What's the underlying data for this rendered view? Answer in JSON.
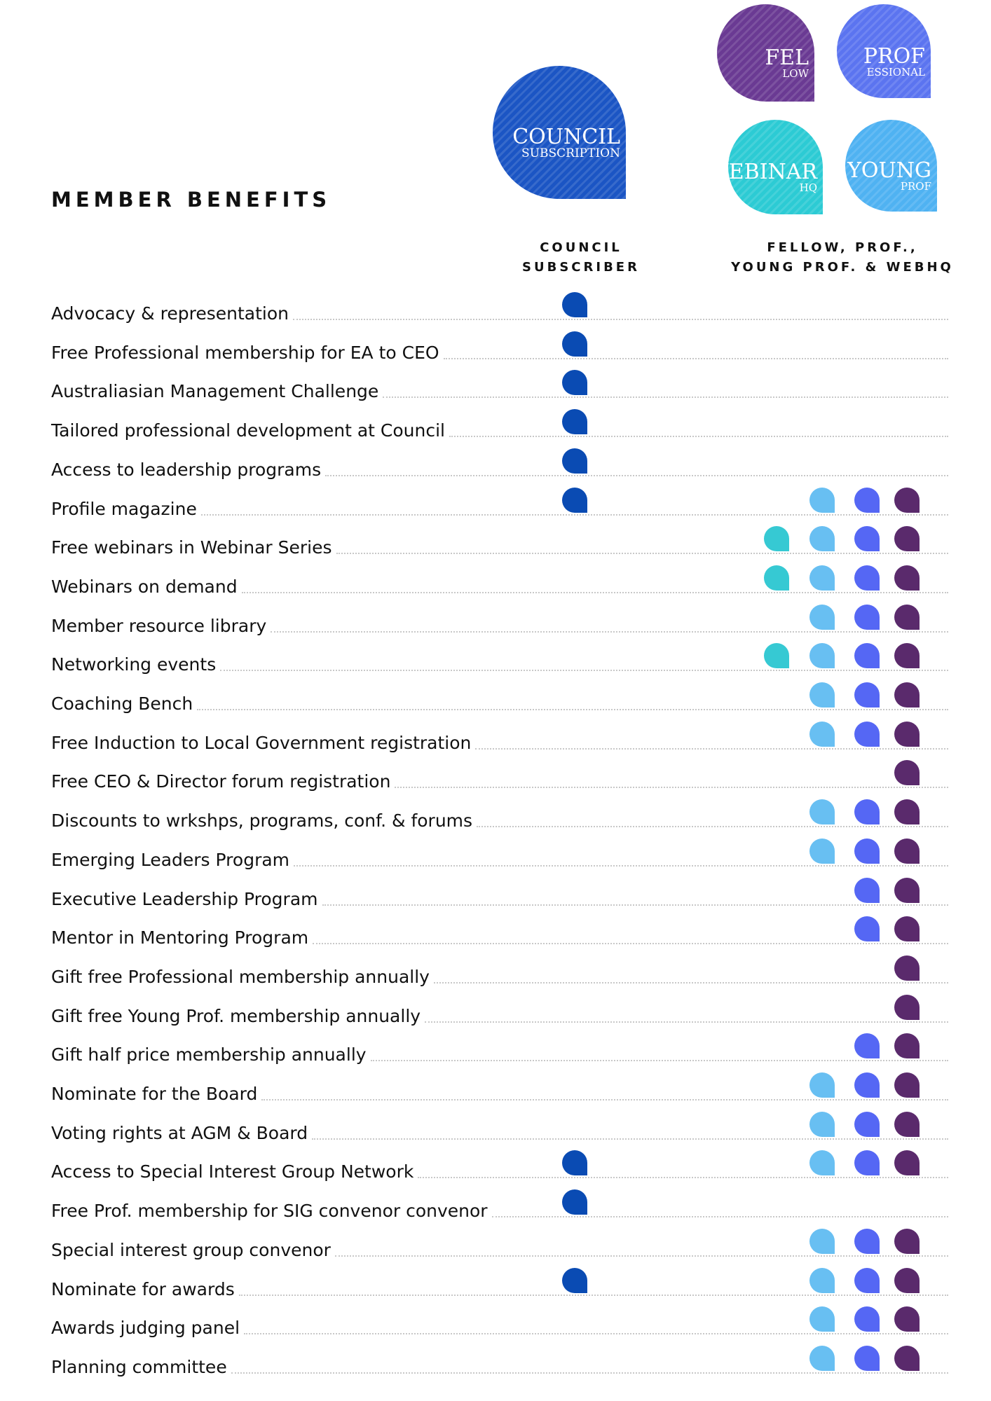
{
  "header": {
    "title": "MEMBER BENEFITS"
  },
  "badges": [
    {
      "lines": [
        "COUNCIL",
        "SUBSCRIPTION"
      ],
      "color": "#1b55c4"
    },
    {
      "lines": [
        "FEL",
        "LOW"
      ],
      "color": "#6a3a93"
    },
    {
      "lines": [
        "PROF",
        "ESSIONAL"
      ],
      "color": "#5b74f0"
    },
    {
      "lines": [
        "WEBINAR",
        "HQ"
      ],
      "color": "#2ccbd4"
    },
    {
      "lines": [
        "YOUNG",
        "PROF"
      ],
      "color": "#4fb2f2"
    }
  ],
  "column_headers": [
    {
      "lines": [
        "COUNCIL",
        "SUBSCRIBER"
      ]
    },
    {
      "lines": [
        "FELLOW, PROF.,",
        "YOUNG PROF. & WEBHQ"
      ]
    }
  ],
  "mark_colors": [
    "#0a4bb3",
    "#36c9d3",
    "#68bff2",
    "#5567f4",
    "#5a2a6c"
  ],
  "rows": [
    {
      "label": "Advocacy & representation",
      "marks": [
        true,
        false,
        false,
        false,
        false
      ]
    },
    {
      "label": "Free Professional membership for EA to CEO",
      "marks": [
        true,
        false,
        false,
        false,
        false
      ]
    },
    {
      "label": "Australiasian Management Challenge",
      "marks": [
        true,
        false,
        false,
        false,
        false
      ]
    },
    {
      "label": "Tailored professional development at Council",
      "marks": [
        true,
        false,
        false,
        false,
        false
      ]
    },
    {
      "label": "Access to leadership programs",
      "marks": [
        true,
        false,
        false,
        false,
        false
      ]
    },
    {
      "label": "Profile magazine",
      "marks": [
        true,
        false,
        true,
        true,
        true
      ]
    },
    {
      "label": "Free webinars in Webinar Series",
      "marks": [
        false,
        true,
        true,
        true,
        true
      ]
    },
    {
      "label": "Webinars on demand",
      "marks": [
        false,
        true,
        true,
        true,
        true
      ]
    },
    {
      "label": "Member resource library",
      "marks": [
        false,
        false,
        true,
        true,
        true
      ]
    },
    {
      "label": "Networking events",
      "marks": [
        false,
        true,
        true,
        true,
        true
      ]
    },
    {
      "label": "Coaching Bench",
      "marks": [
        false,
        false,
        true,
        true,
        true
      ]
    },
    {
      "label": "Free Induction to Local Government registration",
      "marks": [
        false,
        false,
        true,
        true,
        true
      ]
    },
    {
      "label": "Free CEO & Director forum registration",
      "marks": [
        false,
        false,
        false,
        false,
        true
      ]
    },
    {
      "label": "Discounts to wrkshps, programs, conf. & forums",
      "marks": [
        false,
        false,
        true,
        true,
        true
      ]
    },
    {
      "label": "Emerging Leaders Program",
      "marks": [
        false,
        false,
        true,
        true,
        true
      ]
    },
    {
      "label": "Executive Leadership Program",
      "marks": [
        false,
        false,
        false,
        true,
        true
      ]
    },
    {
      "label": "Mentor in Mentoring Program",
      "marks": [
        false,
        false,
        false,
        true,
        true
      ]
    },
    {
      "label": "Gift free Professional membership annually",
      "marks": [
        false,
        false,
        false,
        false,
        true
      ]
    },
    {
      "label": "Gift free Young Prof. membership annually",
      "marks": [
        false,
        false,
        false,
        false,
        true
      ]
    },
    {
      "label": "Gift half price membership annually",
      "marks": [
        false,
        false,
        false,
        true,
        true
      ]
    },
    {
      "label": "Nominate for the Board",
      "marks": [
        false,
        false,
        true,
        true,
        true
      ]
    },
    {
      "label": "Voting rights at AGM & Board",
      "marks": [
        false,
        false,
        true,
        true,
        true
      ]
    },
    {
      "label": "Access to Special Interest Group Network",
      "marks": [
        true,
        false,
        true,
        true,
        true
      ]
    },
    {
      "label": "Free Prof. membership for SIG convenor convenor",
      "marks": [
        true,
        false,
        false,
        false,
        false
      ]
    },
    {
      "label": "Special interest group convenor",
      "marks": [
        false,
        false,
        true,
        true,
        true
      ]
    },
    {
      "label": "Nominate for awards",
      "marks": [
        true,
        false,
        true,
        true,
        true
      ]
    },
    {
      "label": "Awards judging panel",
      "marks": [
        false,
        false,
        true,
        true,
        true
      ]
    },
    {
      "label": "Planning committee",
      "marks": [
        false,
        false,
        true,
        true,
        true
      ]
    }
  ]
}
